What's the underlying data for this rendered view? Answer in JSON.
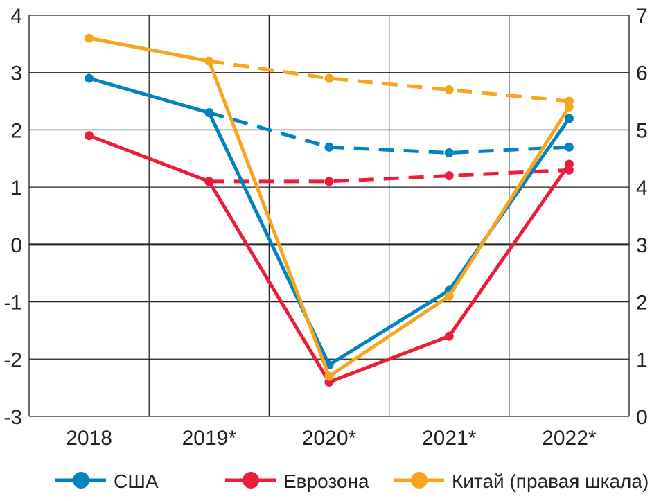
{
  "chart_data": {
    "type": "line",
    "title": "",
    "xlabel": "",
    "ylabel": "",
    "categories": [
      "2018",
      "2019*",
      "2020*",
      "2021*",
      "2022*"
    ],
    "left_axis": {
      "ylim": [
        -3,
        4
      ],
      "ticks": [
        "4",
        "3",
        "2",
        "1",
        "0",
        "-1",
        "-2",
        "-3"
      ]
    },
    "right_axis": {
      "ylim": [
        0,
        7
      ],
      "ticks": [
        "7",
        "6",
        "5",
        "4",
        "3",
        "2",
        "1",
        "0"
      ]
    },
    "grid": true,
    "legend_position": "bottom",
    "series": [
      {
        "name": "США",
        "axis": "left",
        "color": "#0083be",
        "values": [
          2.9,
          2.3,
          -2.1,
          -0.8,
          2.2
        ],
        "dashed_from_index": 1,
        "dashed_values": [
          null,
          2.3,
          1.7,
          1.6,
          1.7
        ]
      },
      {
        "name": "Еврозона",
        "axis": "left",
        "color": "#ec1c3a",
        "values": [
          1.9,
          1.1,
          -2.4,
          -1.6,
          1.4
        ],
        "dashed_from_index": 1,
        "dashed_values": [
          null,
          1.1,
          1.1,
          1.2,
          1.3
        ]
      },
      {
        "name": "Китай (правая шкала)",
        "axis": "right",
        "color": "#f8a51d",
        "values": [
          6.6,
          6.2,
          0.7,
          2.1,
          5.4
        ],
        "dashed_from_index": 1,
        "dashed_values": [
          null,
          6.2,
          5.9,
          5.7,
          5.5
        ]
      }
    ]
  }
}
